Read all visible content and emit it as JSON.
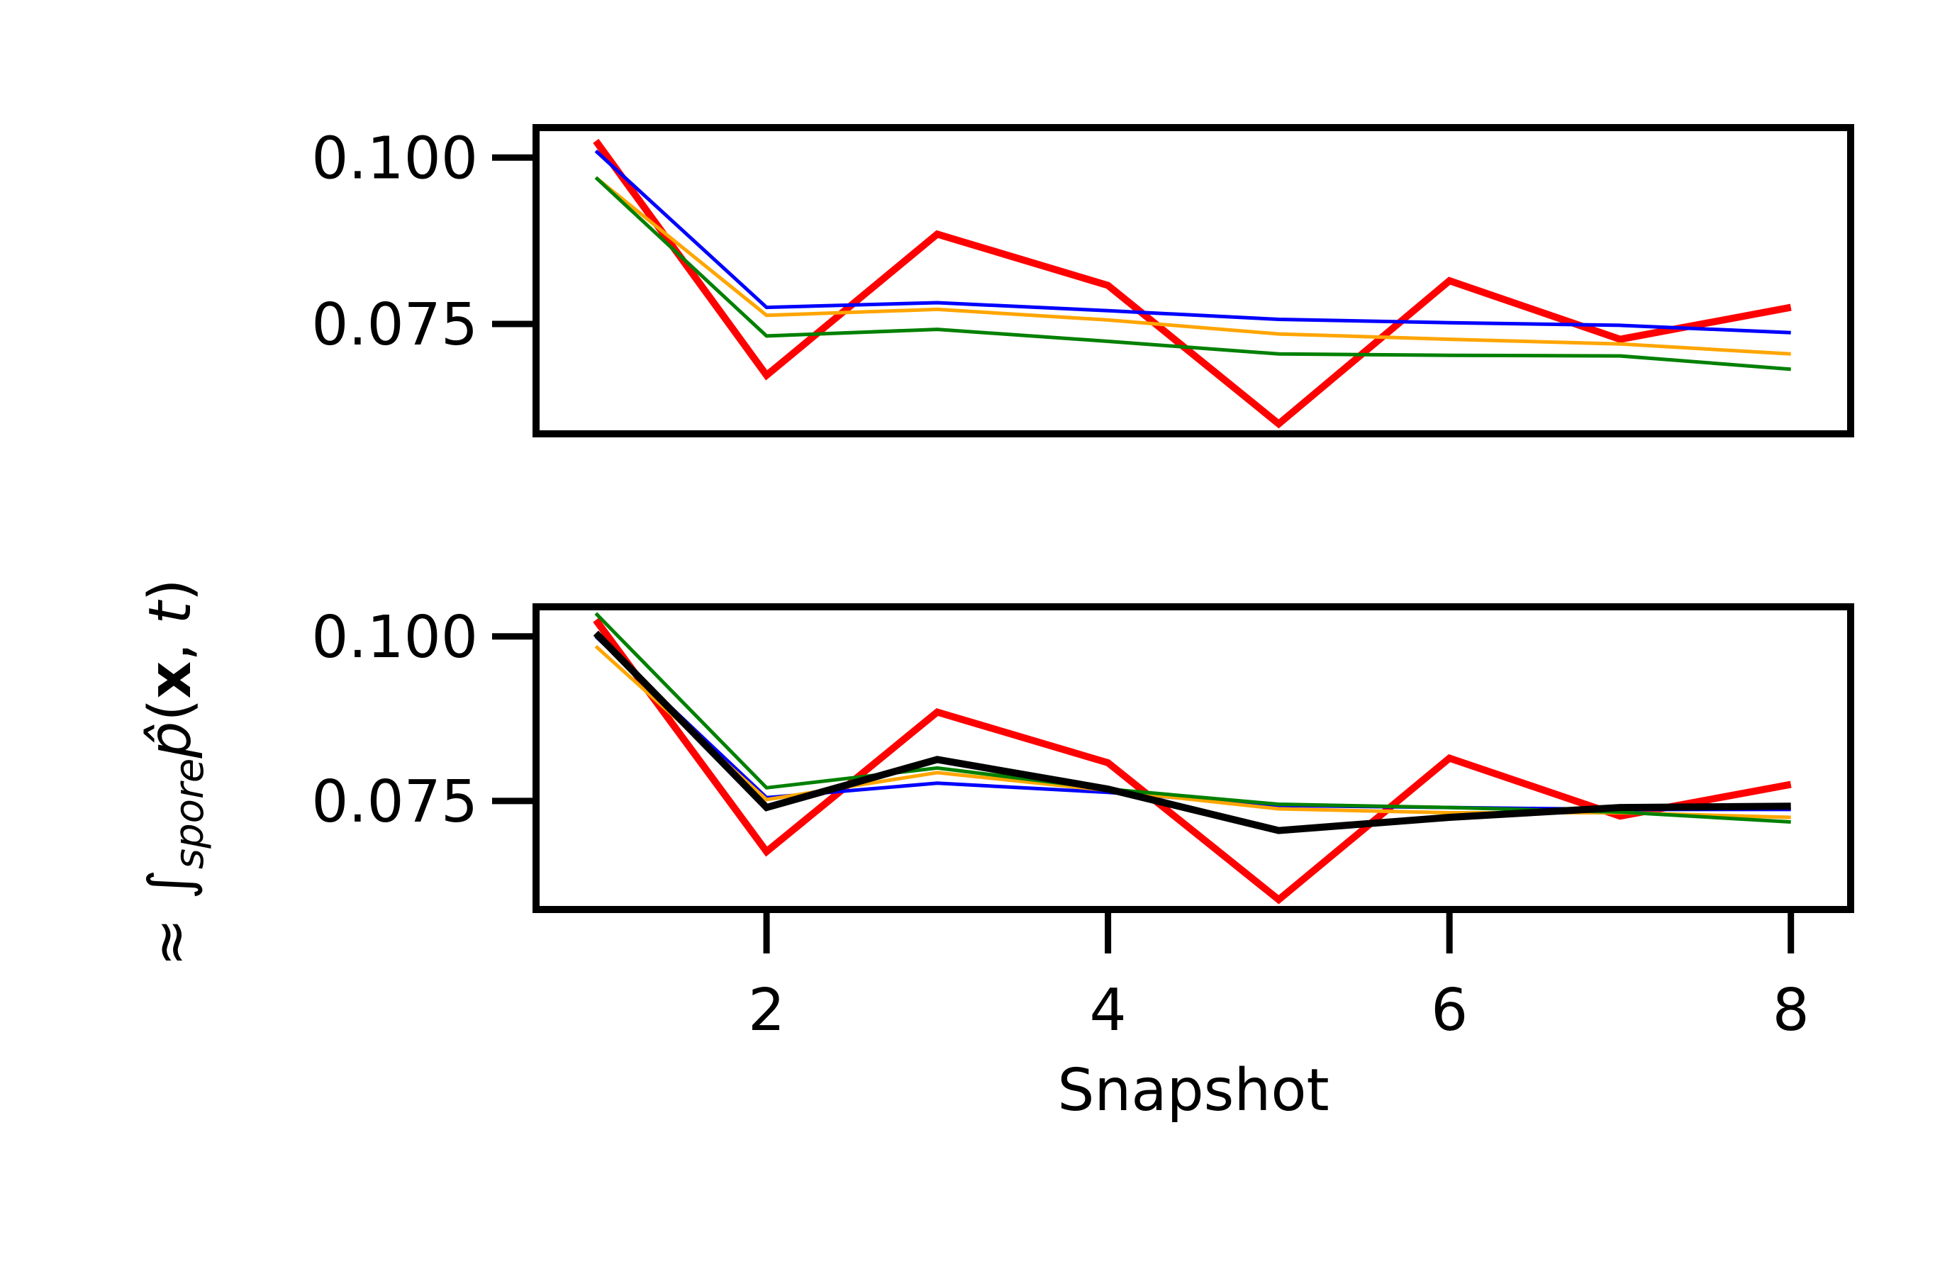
{
  "chart_data": [
    {
      "type": "line",
      "panel": "top",
      "x": [
        1,
        2,
        3,
        4,
        5,
        6,
        7,
        8
      ],
      "ylim": [
        0.0585,
        0.1045
      ],
      "xlim": [
        0.65,
        8.35
      ],
      "yticks": [
        0.075,
        0.1
      ],
      "ytick_labels": [
        "0.075",
        "0.100"
      ],
      "xticks_shown": false,
      "grid": false,
      "series": [
        {
          "color": "#ff0000",
          "width": "thick",
          "values": [
            0.1025,
            0.0673,
            0.0885,
            0.0808,
            0.06,
            0.0815,
            0.0727,
            0.0775
          ]
        },
        {
          "color": "#0000ff",
          "width": "thin",
          "values": [
            0.101,
            0.0775,
            0.0782,
            0.077,
            0.0757,
            0.0752,
            0.0748,
            0.0737
          ]
        },
        {
          "color": "#ffa500",
          "width": "thin",
          "values": [
            0.097,
            0.0763,
            0.0772,
            0.0756,
            0.0735,
            0.0727,
            0.072,
            0.0705
          ]
        },
        {
          "color": "#008000",
          "width": "thin",
          "values": [
            0.097,
            0.0732,
            0.0742,
            0.0724,
            0.0705,
            0.0703,
            0.0702,
            0.0682
          ]
        }
      ]
    },
    {
      "type": "line",
      "panel": "bottom",
      "x": [
        1,
        2,
        3,
        4,
        5,
        6,
        7,
        8
      ],
      "ylim": [
        0.0585,
        0.1045
      ],
      "xlim": [
        0.65,
        8.35
      ],
      "yticks": [
        0.075,
        0.1
      ],
      "ytick_labels": [
        "0.075",
        "0.100"
      ],
      "xticks": [
        2,
        4,
        6,
        8
      ],
      "xtick_labels": [
        "2",
        "4",
        "6",
        "8"
      ],
      "xlabel": "Snapshot",
      "grid": false,
      "series": [
        {
          "color": "#ff0000",
          "width": "thick",
          "values": [
            0.1025,
            0.0673,
            0.0885,
            0.0808,
            0.06,
            0.0815,
            0.0727,
            0.0775
          ]
        },
        {
          "color": "#0000ff",
          "width": "thin",
          "values": [
            0.1,
            0.0755,
            0.0777,
            0.0763,
            0.0743,
            0.074,
            0.0737,
            0.0737
          ]
        },
        {
          "color": "#ffa500",
          "width": "thin",
          "values": [
            0.0985,
            0.0752,
            0.0793,
            0.0766,
            0.0738,
            0.0732,
            0.0732,
            0.0725
          ]
        },
        {
          "color": "#008000",
          "width": "thin",
          "values": [
            0.1035,
            0.077,
            0.08,
            0.0768,
            0.0745,
            0.074,
            0.0733,
            0.0718
          ]
        },
        {
          "color": "#000000",
          "width": "thick",
          "values": [
            0.1005,
            0.074,
            0.0813,
            0.0768,
            0.0705,
            0.0725,
            0.074,
            0.0742
          ]
        }
      ]
    }
  ],
  "shared_ylabel": {
    "prefix": "≈ ∫",
    "subscript": "spore",
    "p_hat": "p̂",
    "open_paren": "(",
    "x_bold": "x",
    "comma": ", ",
    "t": "t",
    "close_paren": ")"
  }
}
